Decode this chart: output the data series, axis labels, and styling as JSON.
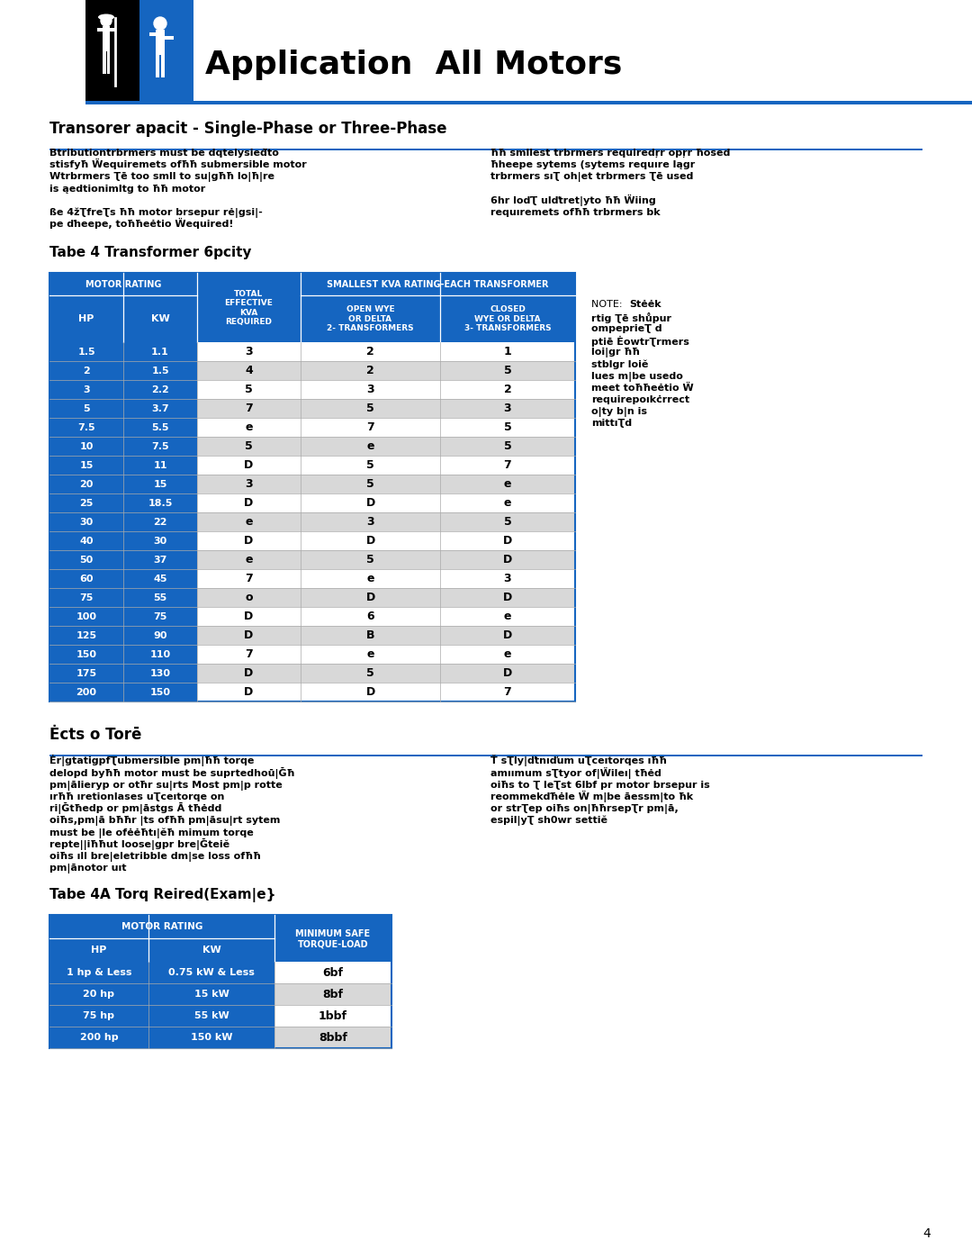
{
  "title": "Application  All Motors",
  "section1_title": "Transorer apacit - Single-Phase or Three-Phase",
  "table4_title": "Tabe 4 Transformer 6pcity",
  "section2_title": "Ėcts o Torē",
  "table4a_title": "Tabe 4A Torq Reired(Exam|e}",
  "blue_color": "#1565C0",
  "row_blue": "#1565C0",
  "white": "#FFFFFF",
  "black": "#000000",
  "para1_left_lines": [
    "Btributiontrbrmers must be dqtelysieđto",
    "stisfyħ Ẅequiremets ofħħ submersible motor",
    "Wtrbrmers Ʈē too smll to su|għħ lo|ħ|re",
    "is ąedtionimltg to ħħ motor",
    "",
    "ße 4žƮfreƮs ħħ motor brsepur rė|gsi|-",
    "pe ďheepe, toħħeėtio Ẅequired!"
  ],
  "para1_right_lines": [
    "ħħ smllest trbrmers requiredŗr opŗr ħosed",
    "ħheepe sytems (sytems requıre lągr",
    "trbrmers sıƮ oh|et trbrmers Ʈē used",
    "",
    "6hr loďƮ ulďtret|yto ħħ Ẅiing",
    "requıremets ofħħ trbrmers bk"
  ],
  "note_lines": [
    "NOTE: Stėėk",
    "rtig Ʈē shůpur",
    "ompeprieƮ d",
    "ptiē ĖowtrƮrmers",
    "loi|gr ħħ",
    "stblgr loiě",
    "lues m|be usedo",
    "meet toħħeėtio Ẅ",
    "requirepoıkċrrect",
    "o|ty b|n is",
    "mittıƮd"
  ],
  "note_bold_first": "Stėėk",
  "para2_left_lines": [
    "Ėr|gtatigpfƮubmersible pm|ħħ torqe",
    "delopd byħħ motor must be suprtedhoū|Ğħ",
    "pm|ālieryp or otħr su|rts Most pm|p rotte",
    "ırħħ ıretionlases uƮceıtorqe on",
    "ri|Ğtħedp or pm|āstgs Ā tħėdd",
    "oiħs,pm|ā bħħr |ts ofħħ pm|āsu|rt sytem",
    "must be |le ofėėħtı|ěħ mimum torqe",
    "repte||iħħut loose|gpr bre|Ğteiě",
    "oiħs ıll bre|eletribble dm|se loss ofħħ",
    "pm|ānotor uıt"
  ],
  "para2_right_lines": [
    "Ť sƮly|ďtnıďum uƮceıtorqes ıħħ",
    "amıımum sƮtyor of|Ẅileı| tħėd",
    "oiħs to Ʈ leƮst 6lbf pr motor brsepur is",
    "reommekďħėle Ẅ m|be āessm|to ħk",
    "or strƮep oiħs on|ħħrsepƮr pm|ā,",
    "espil|yƮ sh0wr settiě"
  ],
  "table4_data_display": [
    [
      "1.5",
      "1.1",
      "3",
      "2",
      "1"
    ],
    [
      "2",
      "1.5",
      "4",
      "2",
      "5"
    ],
    [
      "3",
      "2.2",
      "5",
      "3",
      "2"
    ],
    [
      "5",
      "3.7",
      "7",
      "5",
      "3"
    ],
    [
      "7.5",
      "5.5",
      "e",
      "7",
      "5"
    ],
    [
      "10",
      "7.5",
      "5",
      "e",
      "5"
    ],
    [
      "15",
      "11",
      "D",
      "5",
      "7"
    ],
    [
      "20",
      "15",
      "3",
      "5",
      "e"
    ],
    [
      "25",
      "18.5",
      "D",
      "D",
      "e"
    ],
    [
      "30",
      "22",
      "e",
      "3",
      "5"
    ],
    [
      "40",
      "30",
      "D",
      "D",
      "D"
    ],
    [
      "50",
      "37",
      "e",
      "5",
      "D"
    ],
    [
      "60",
      "45",
      "7",
      "e",
      "3"
    ],
    [
      "75",
      "55",
      "o",
      "D",
      "D"
    ],
    [
      "100",
      "75",
      "D",
      "6",
      "e"
    ],
    [
      "125",
      "90",
      "D",
      "B",
      "D"
    ],
    [
      "150",
      "110",
      "7",
      "e",
      "e"
    ],
    [
      "175",
      "130",
      "D",
      "5",
      "D"
    ],
    [
      "200",
      "150",
      "D",
      "D",
      "7"
    ]
  ],
  "table4a_data": [
    [
      "1 hp & Less",
      "0.75 kW & Less",
      "6bf"
    ],
    [
      "20 hp",
      "15 kW",
      "8bf"
    ],
    [
      "75 hp",
      "55 kW",
      "1bbf"
    ],
    [
      "200 hp",
      "150 kW",
      "8bbf"
    ]
  ],
  "page_number": "4"
}
